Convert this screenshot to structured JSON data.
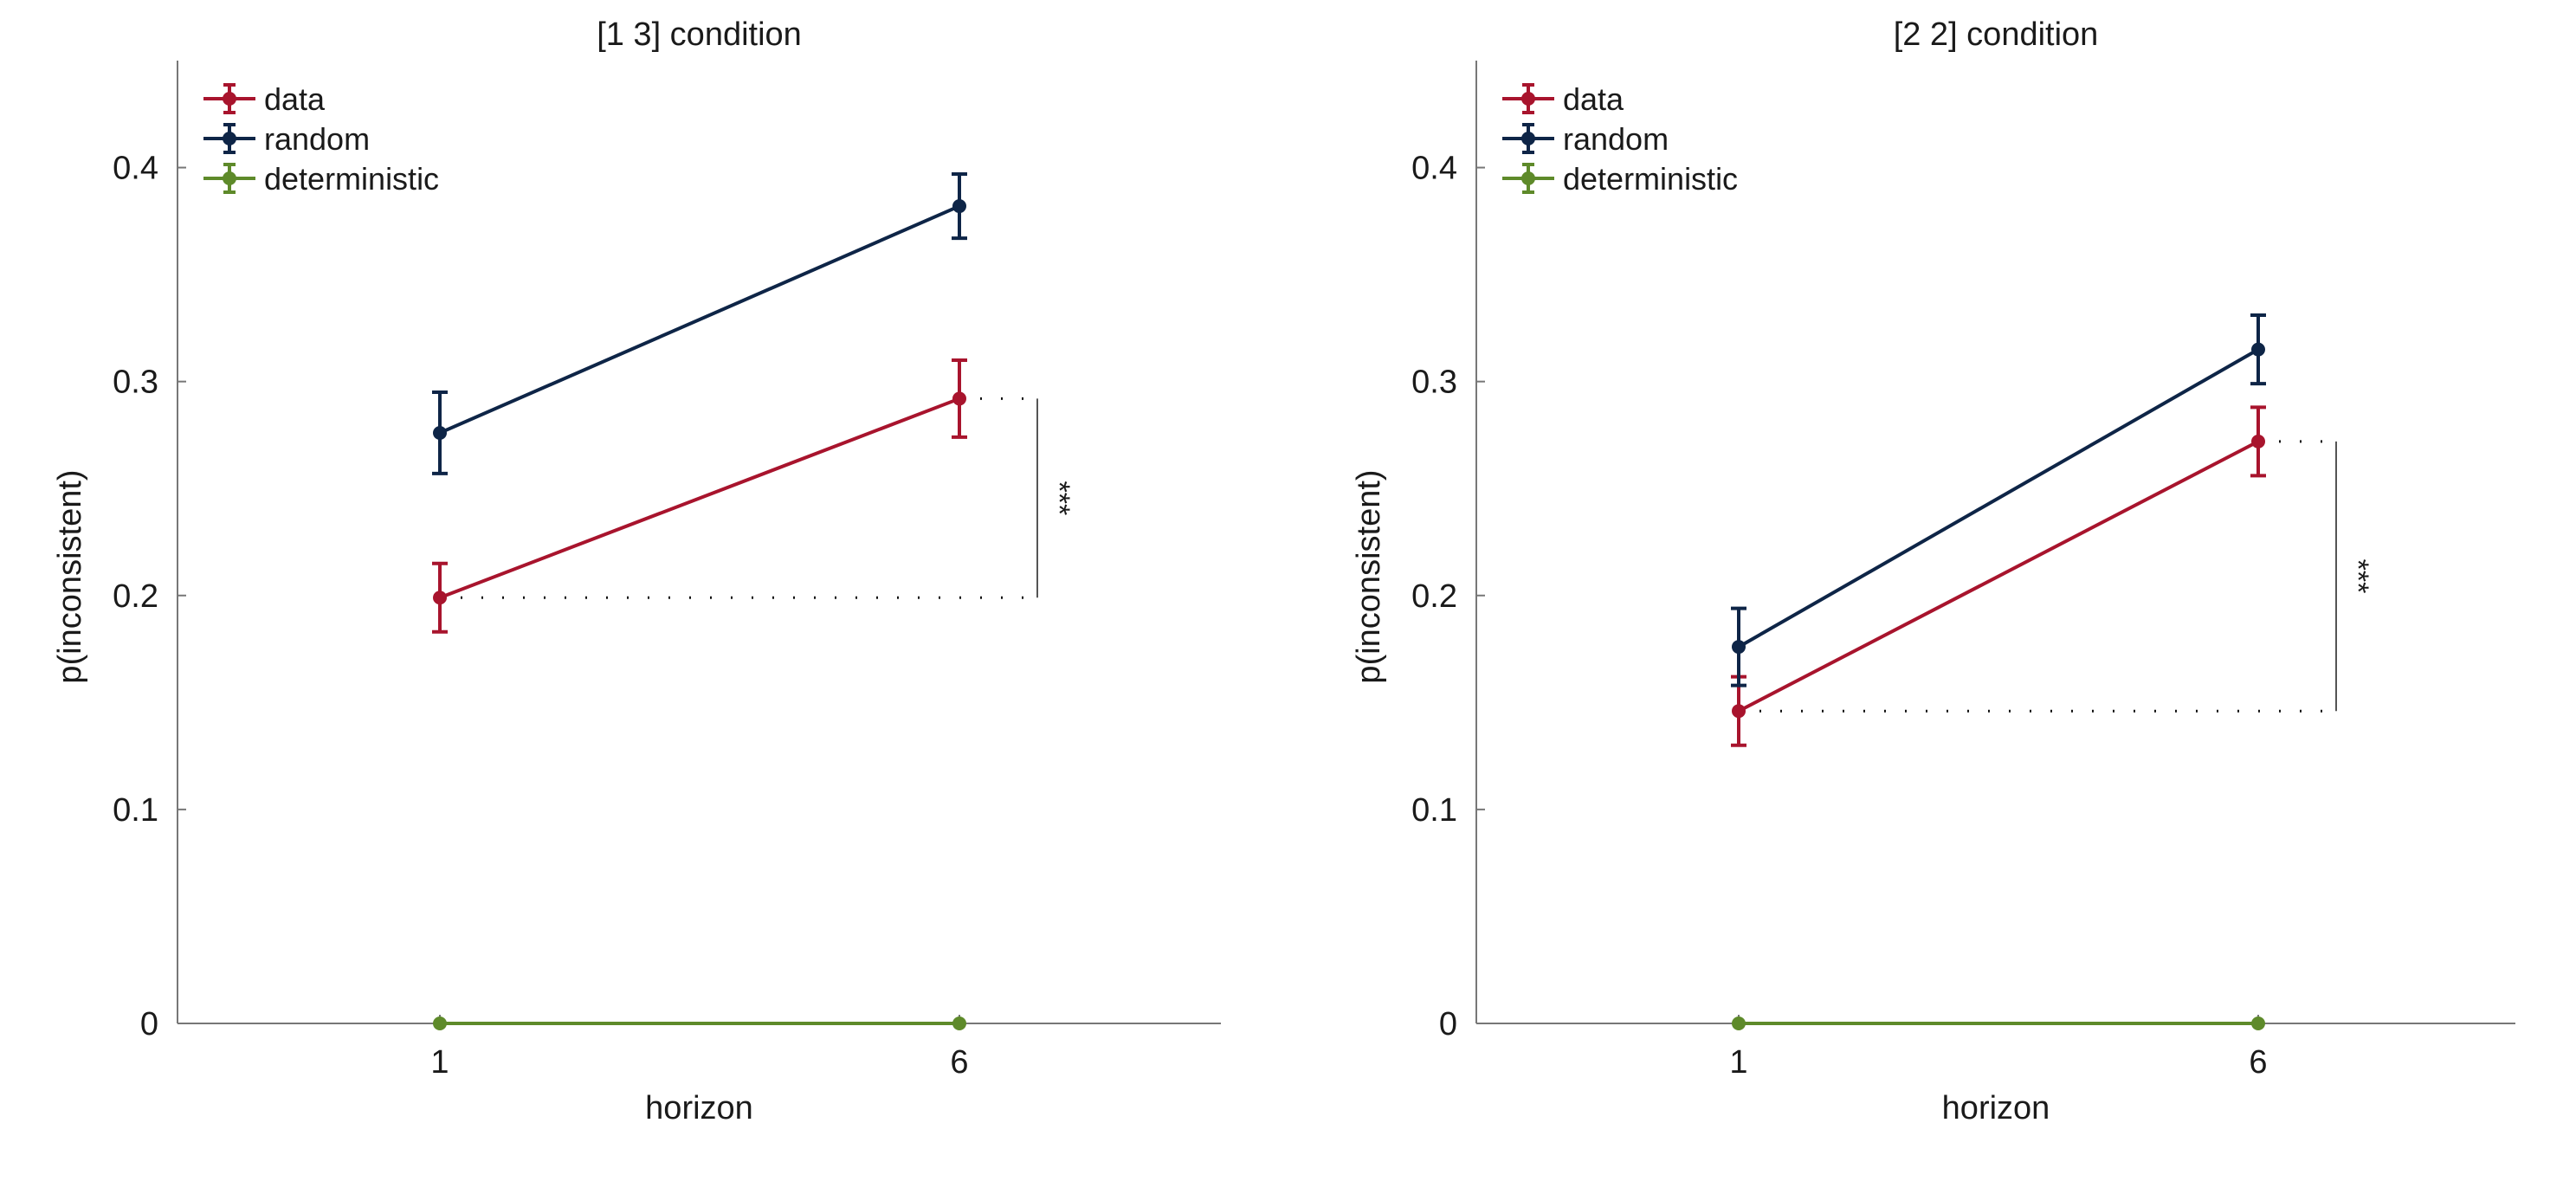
{
  "chart_data": [
    {
      "type": "line",
      "title": "[1 3] condition",
      "xlabel": "horizon",
      "ylabel": "p(inconsistent)",
      "x_categories": [
        "1",
        "6"
      ],
      "ylim": [
        0,
        0.45
      ],
      "yticks": [
        0,
        0.1,
        0.2,
        0.3,
        0.4
      ],
      "ytick_labels": [
        "0",
        "0.1",
        "0.2",
        "0.3",
        "0.4"
      ],
      "grid": false,
      "legend_position": "top-left",
      "series": [
        {
          "name": "data",
          "color": "#a8142d",
          "values": [
            0.199,
            0.292
          ],
          "errors": [
            0.016,
            0.018
          ]
        },
        {
          "name": "random",
          "color": "#0e2547",
          "values": [
            0.276,
            0.382
          ],
          "errors": [
            0.019,
            0.015
          ]
        },
        {
          "name": "deterministic",
          "color": "#5e8a2a",
          "values": [
            0,
            0
          ],
          "errors": [
            0,
            0
          ]
        }
      ],
      "annotation": {
        "text": "***",
        "y_low": 0.199,
        "y_high": 0.292
      }
    },
    {
      "type": "line",
      "title": "[2 2] condition",
      "xlabel": "horizon",
      "ylabel": "p(inconsistent)",
      "x_categories": [
        "1",
        "6"
      ],
      "ylim": [
        0,
        0.45
      ],
      "yticks": [
        0,
        0.1,
        0.2,
        0.3,
        0.4
      ],
      "ytick_labels": [
        "0",
        "0.1",
        "0.2",
        "0.3",
        "0.4"
      ],
      "grid": false,
      "legend_position": "top-left",
      "series": [
        {
          "name": "data",
          "color": "#a8142d",
          "values": [
            0.146,
            0.272
          ],
          "errors": [
            0.016,
            0.016
          ]
        },
        {
          "name": "random",
          "color": "#0e2547",
          "values": [
            0.176,
            0.315
          ],
          "errors": [
            0.018,
            0.016
          ]
        },
        {
          "name": "deterministic",
          "color": "#5e8a2a",
          "values": [
            0,
            0
          ],
          "errors": [
            0,
            0
          ]
        }
      ],
      "annotation": {
        "text": "***",
        "y_low": 0.146,
        "y_high": 0.272
      }
    }
  ]
}
